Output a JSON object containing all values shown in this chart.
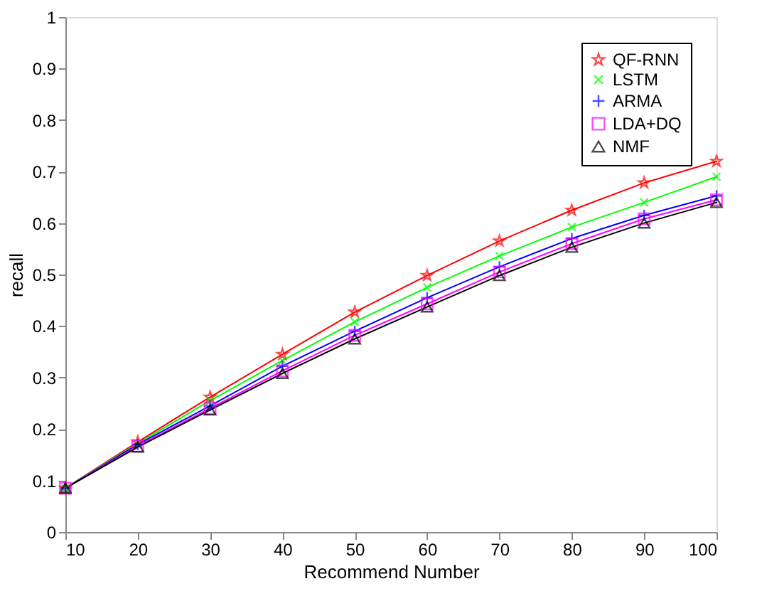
{
  "chart_data": {
    "type": "line",
    "xlabel": "Recommend Number",
    "ylabel": "recall",
    "x": [
      10,
      20,
      30,
      40,
      50,
      60,
      70,
      80,
      90,
      100
    ],
    "series": [
      {
        "name": "QF-RNN",
        "color": "#ff0000",
        "marker": "star",
        "values": [
          0.085,
          0.175,
          0.262,
          0.345,
          0.427,
          0.498,
          0.565,
          0.625,
          0.678,
          0.72
        ]
      },
      {
        "name": "LSTM",
        "color": "#00ff00",
        "marker": "cross",
        "values": [
          0.085,
          0.172,
          0.255,
          0.333,
          0.408,
          0.475,
          0.536,
          0.592,
          0.64,
          0.69
        ]
      },
      {
        "name": "ARMA",
        "color": "#0000ff",
        "marker": "plus",
        "values": [
          0.085,
          0.17,
          0.245,
          0.322,
          0.39,
          0.455,
          0.515,
          0.57,
          0.615,
          0.653
        ]
      },
      {
        "name": "LDA+DQ",
        "color": "#ff00ff",
        "marker": "square",
        "values": [
          0.085,
          0.167,
          0.24,
          0.313,
          0.382,
          0.443,
          0.505,
          0.56,
          0.608,
          0.645
        ]
      },
      {
        "name": "NMF",
        "color": "#000000",
        "marker": "triangle",
        "values": [
          0.085,
          0.165,
          0.237,
          0.308,
          0.375,
          0.437,
          0.498,
          0.553,
          0.6,
          0.64
        ]
      }
    ],
    "xlim": [
      10,
      100
    ],
    "xticks": [
      10,
      20,
      30,
      40,
      50,
      60,
      70,
      80,
      90,
      100
    ],
    "ylim": [
      0,
      1
    ],
    "yticks": [
      0,
      0.1,
      0.2,
      0.3,
      0.4,
      0.5,
      0.6,
      0.7,
      0.8,
      0.9,
      1
    ],
    "grid": false,
    "legend": "top right",
    "line_style": "solid"
  }
}
